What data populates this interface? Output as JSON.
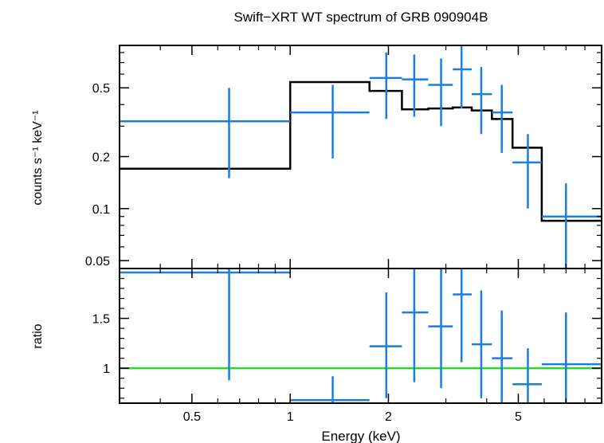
{
  "chart_data": {
    "type": "scatter",
    "title": "Swift−XRT WT spectrum of GRB 090904B",
    "xlabel": "Energy (keV)",
    "x_scale": "log",
    "xlim": [
      0.3,
      9.0
    ],
    "xticks": [
      {
        "v": 0.5,
        "label": "0.5"
      },
      {
        "v": 1,
        "label": "1"
      },
      {
        "v": 2,
        "label": "2"
      },
      {
        "v": 5,
        "label": "5"
      }
    ],
    "colors": {
      "data": "#1a7fe0",
      "model": "#000000",
      "unity": "#22dd22",
      "axis": "#000000"
    },
    "panels": [
      {
        "id": "spectrum",
        "ylabel": "counts s⁻¹ keV⁻¹",
        "y_scale": "log",
        "ylim": [
          0.045,
          0.88
        ],
        "yticks": [
          {
            "v": 0.05,
            "label": "0.05"
          },
          {
            "v": 0.1,
            "label": "0.1"
          },
          {
            "v": 0.2,
            "label": "0.2"
          },
          {
            "v": 0.5,
            "label": "0.5"
          }
        ],
        "data": [
          {
            "x": 0.65,
            "xlo": 0.3,
            "xhi": 1.0,
            "y": 0.32,
            "ylo": 0.15,
            "yhi": 0.5
          },
          {
            "x": 1.35,
            "xlo": 1.0,
            "xhi": 1.75,
            "y": 0.36,
            "ylo": 0.195,
            "yhi": 0.52
          },
          {
            "x": 1.97,
            "xlo": 1.75,
            "xhi": 2.2,
            "y": 0.57,
            "ylo": 0.33,
            "yhi": 0.8
          },
          {
            "x": 2.4,
            "xlo": 2.2,
            "xhi": 2.65,
            "y": 0.56,
            "ylo": 0.34,
            "yhi": 0.78
          },
          {
            "x": 2.9,
            "xlo": 2.65,
            "xhi": 3.15,
            "y": 0.52,
            "ylo": 0.3,
            "yhi": 0.74
          },
          {
            "x": 3.35,
            "xlo": 3.15,
            "xhi": 3.6,
            "y": 0.64,
            "ylo": 0.38,
            "yhi": 0.92
          },
          {
            "x": 3.85,
            "xlo": 3.6,
            "xhi": 4.15,
            "y": 0.46,
            "ylo": 0.27,
            "yhi": 0.66
          },
          {
            "x": 4.45,
            "xlo": 4.15,
            "xhi": 4.8,
            "y": 0.36,
            "ylo": 0.21,
            "yhi": 0.52
          },
          {
            "x": 5.35,
            "xlo": 4.8,
            "xhi": 5.9,
            "y": 0.185,
            "ylo": 0.1,
            "yhi": 0.27
          },
          {
            "x": 7.0,
            "xlo": 5.9,
            "xhi": 9.0,
            "y": 0.09,
            "ylo": 0.045,
            "yhi": 0.14
          }
        ],
        "model_steps": [
          {
            "xlo": 0.3,
            "xhi": 1.0,
            "y": 0.17
          },
          {
            "xlo": 1.0,
            "xhi": 1.75,
            "y": 0.54
          },
          {
            "xlo": 1.75,
            "xhi": 2.2,
            "y": 0.48
          },
          {
            "xlo": 2.2,
            "xhi": 2.65,
            "y": 0.375
          },
          {
            "xlo": 2.65,
            "xhi": 3.15,
            "y": 0.38
          },
          {
            "xlo": 3.15,
            "xhi": 3.6,
            "y": 0.385
          },
          {
            "xlo": 3.6,
            "xhi": 4.15,
            "y": 0.37
          },
          {
            "xlo": 4.15,
            "xhi": 4.8,
            "y": 0.33
          },
          {
            "xlo": 4.8,
            "xhi": 5.9,
            "y": 0.225
          },
          {
            "xlo": 5.9,
            "xhi": 9.0,
            "y": 0.085
          }
        ]
      },
      {
        "id": "ratio",
        "ylabel": "ratio",
        "y_scale": "linear",
        "ylim": [
          0.65,
          2.0
        ],
        "yticks": [
          {
            "v": 1,
            "label": "1"
          },
          {
            "v": 1.5,
            "label": "1.5"
          }
        ],
        "unity_line": 1,
        "data": [
          {
            "x": 0.65,
            "xlo": 0.3,
            "xhi": 1.0,
            "y": 1.96,
            "ylo": 0.88,
            "yhi": 2.0
          },
          {
            "x": 1.35,
            "xlo": 1.0,
            "xhi": 1.75,
            "y": 0.68,
            "ylo": 0.65,
            "yhi": 0.92
          },
          {
            "x": 1.97,
            "xlo": 1.75,
            "xhi": 2.2,
            "y": 1.22,
            "ylo": 0.7,
            "yhi": 1.76
          },
          {
            "x": 2.4,
            "xlo": 2.2,
            "xhi": 2.65,
            "y": 1.56,
            "ylo": 0.86,
            "yhi": 2.0
          },
          {
            "x": 2.9,
            "xlo": 2.65,
            "xhi": 3.15,
            "y": 1.42,
            "ylo": 0.8,
            "yhi": 2.0
          },
          {
            "x": 3.35,
            "xlo": 3.15,
            "xhi": 3.6,
            "y": 1.74,
            "ylo": 1.06,
            "yhi": 2.0
          },
          {
            "x": 3.85,
            "xlo": 3.6,
            "xhi": 4.15,
            "y": 1.24,
            "ylo": 0.7,
            "yhi": 1.78
          },
          {
            "x": 4.45,
            "xlo": 4.15,
            "xhi": 4.8,
            "y": 1.1,
            "ylo": 0.62,
            "yhi": 1.58
          },
          {
            "x": 5.35,
            "xlo": 4.8,
            "xhi": 5.9,
            "y": 0.84,
            "ylo": 0.46,
            "yhi": 1.2
          },
          {
            "x": 7.0,
            "xlo": 5.9,
            "xhi": 9.0,
            "y": 1.04,
            "ylo": 0.5,
            "yhi": 1.56
          }
        ]
      }
    ]
  }
}
